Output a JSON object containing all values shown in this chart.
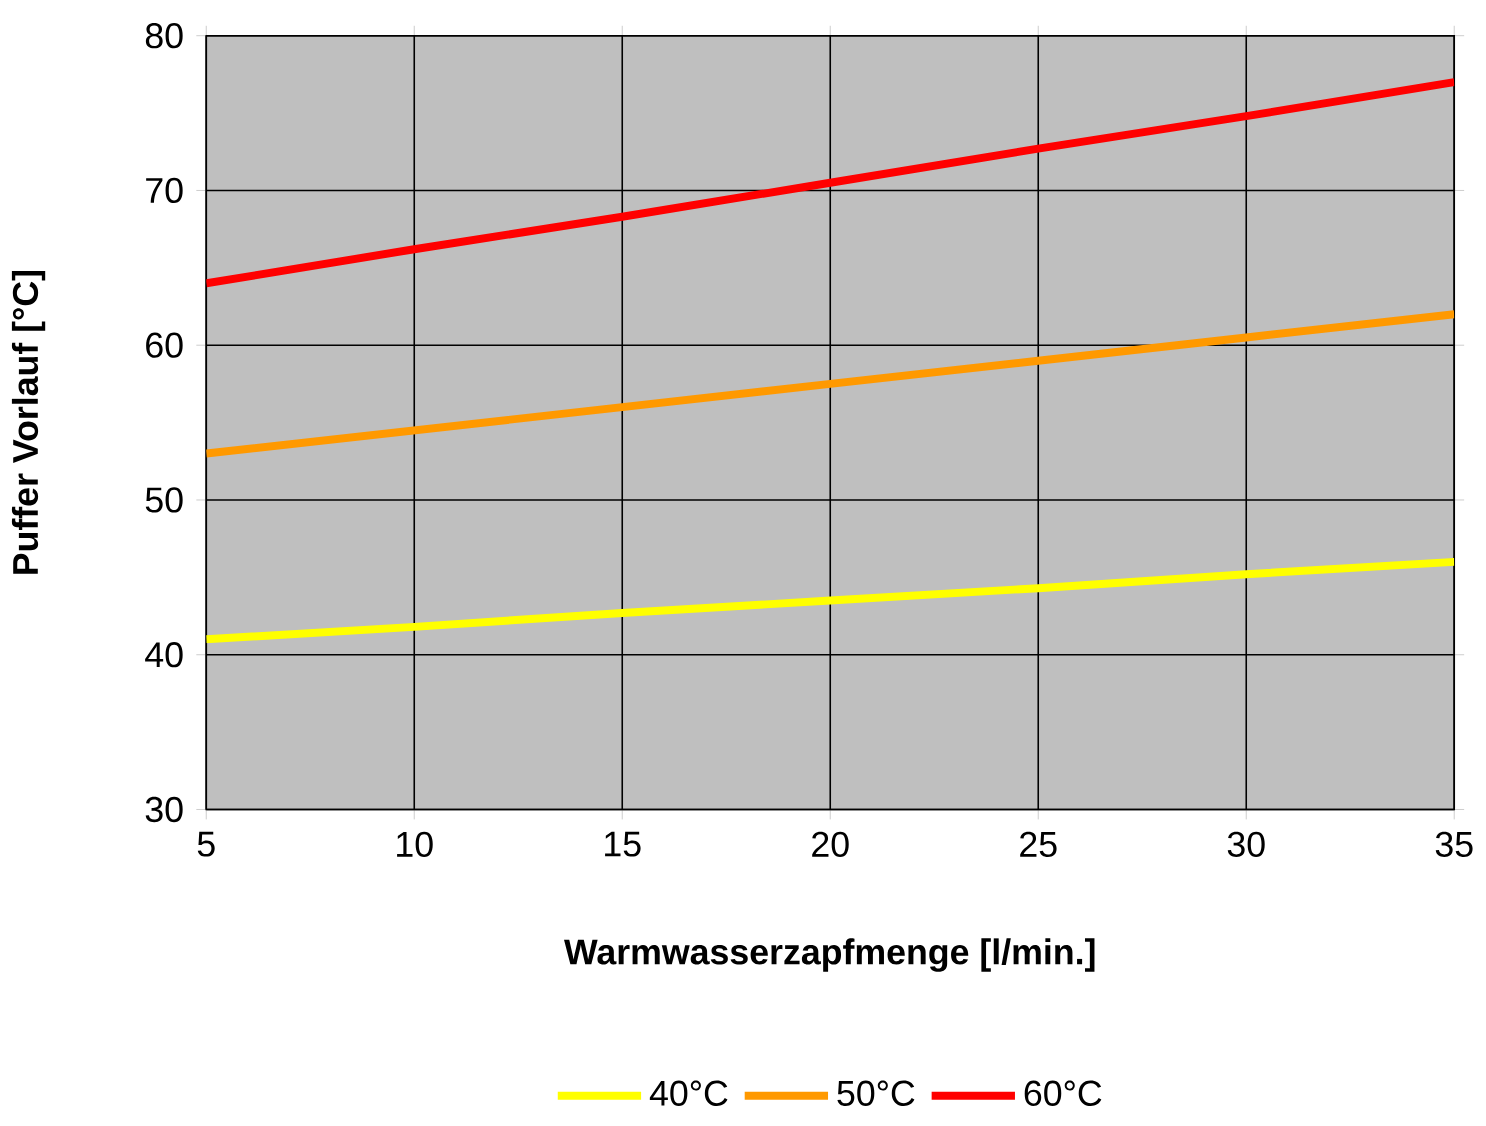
{
  "chart_data": {
    "type": "line",
    "xlabel": "Warmwasserzapfmenge [l/min.]",
    "ylabel": "Puffer Vorlauf [°C]",
    "x": [
      5,
      10,
      15,
      20,
      25,
      30,
      35
    ],
    "series": [
      {
        "name": "40°C",
        "color": "#ffff00",
        "values": [
          41,
          41.8,
          42.7,
          43.5,
          44.3,
          45.2,
          46
        ]
      },
      {
        "name": "50°C",
        "color": "#ff9900",
        "values": [
          53,
          54.5,
          56,
          57.5,
          59,
          60.5,
          62
        ]
      },
      {
        "name": "60°C",
        "color": "#ff0000",
        "values": [
          64,
          66.2,
          68.3,
          70.5,
          72.7,
          74.8,
          77
        ]
      }
    ],
    "xlim": [
      5,
      35
    ],
    "ylim": [
      30,
      80
    ],
    "xticks": [
      5,
      10,
      15,
      20,
      25,
      30,
      35
    ],
    "yticks": [
      30,
      40,
      50,
      60,
      70,
      80
    ],
    "grid": true,
    "legend": "bottom",
    "marker": "none",
    "line_style": "solid"
  }
}
